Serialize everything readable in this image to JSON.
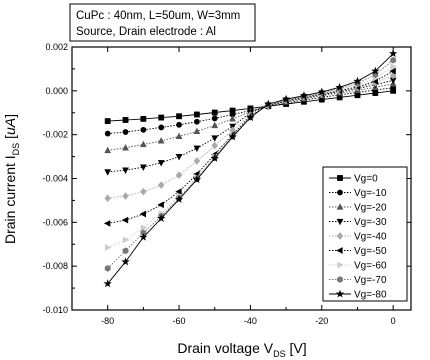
{
  "chart_data": {
    "type": "line",
    "info_box": {
      "line1": "CuPc : 40nm, L=50um, W=3mm",
      "line2": "Source, Drain electrode : Al"
    },
    "xlabel": {
      "main": "Drain voltage V",
      "sub": "DS",
      "unit": " [V]"
    },
    "ylabel": {
      "main": "Drain current I",
      "sub": "DS",
      "unit_open": " [",
      "unit": "uA",
      "unit_close": "]"
    },
    "xlim": [
      -90,
      5
    ],
    "ylim": [
      -0.01,
      0.002
    ],
    "x_ticks": [
      -80,
      -60,
      -40,
      -20,
      0
    ],
    "x_tick_labels": [
      "-80",
      "-60",
      "-40",
      "-20",
      "0"
    ],
    "y_ticks": [
      0.002,
      0.0,
      -0.002,
      -0.004,
      -0.006,
      -0.008,
      -0.01
    ],
    "y_tick_labels": [
      "0.002",
      "0.000",
      "-0.002",
      "-0.004",
      "-0.006",
      "-0.008",
      "-0.010"
    ],
    "legend_position": "lower-right",
    "x": [
      -80,
      -75,
      -70,
      -65,
      -60,
      -55,
      -50,
      -45,
      -40,
      -35,
      -30,
      -25,
      -20,
      -15,
      -10,
      -5,
      0
    ],
    "series": [
      {
        "name": "Vg=0",
        "marker": "square",
        "values": [
          -0.00138,
          -0.00133,
          -0.00128,
          -0.00122,
          -0.00116,
          -0.00108,
          -0.00099,
          -0.0009,
          -0.0008,
          -0.0007,
          -0.0006,
          -0.0005,
          -0.0004,
          -0.0003,
          -0.0002,
          -0.0001,
          0.0
        ]
      },
      {
        "name": "Vg=-10",
        "marker": "circle",
        "values": [
          -0.00195,
          -0.00188,
          -0.00178,
          -0.00167,
          -0.00155,
          -0.00141,
          -0.00126,
          -0.00108,
          -0.0009,
          -0.00072,
          -0.00056,
          -0.00042,
          -0.0003,
          -0.00018,
          -7e-05,
          4e-05,
          0.00014
        ]
      },
      {
        "name": "Vg=-20",
        "marker": "triangle-up",
        "values": [
          -0.00272,
          -0.0026,
          -0.00245,
          -0.00228,
          -0.00208,
          -0.00185,
          -0.00158,
          -0.00128,
          -0.00095,
          -0.00068,
          -0.0005,
          -0.00036,
          -0.00022,
          -0.0001,
          2e-05,
          0.00016,
          0.00032
        ]
      },
      {
        "name": "Vg=-30",
        "marker": "triangle-down",
        "values": [
          -0.0037,
          -0.00362,
          -0.00348,
          -0.00328,
          -0.003,
          -0.00262,
          -0.00215,
          -0.00162,
          -0.001,
          -0.00068,
          -0.00048,
          -0.00032,
          -0.00018,
          -4e-05,
          0.0001,
          0.00028,
          0.00048
        ]
      },
      {
        "name": "Vg=-40",
        "marker": "diamond",
        "values": [
          -0.0049,
          -0.0048,
          -0.0046,
          -0.0043,
          -0.00385,
          -0.0032,
          -0.0025,
          -0.0018,
          -0.0011,
          -0.00068,
          -0.00046,
          -0.0003,
          -0.00016,
          -2e-05,
          0.00014,
          0.00036,
          0.0007
        ]
      },
      {
        "name": "Vg=-50",
        "marker": "triangle-left",
        "values": [
          -0.00605,
          -0.0059,
          -0.00562,
          -0.0052,
          -0.0046,
          -0.0038,
          -0.0029,
          -0.002,
          -0.00115,
          -0.00066,
          -0.00044,
          -0.00028,
          -0.00014,
          1e-05,
          0.00018,
          0.00044,
          0.0009
        ]
      },
      {
        "name": "Vg=-60",
        "marker": "triangle-right",
        "values": [
          -0.00715,
          -0.0068,
          -0.00625,
          -0.0056,
          -0.0048,
          -0.00395,
          -0.003,
          -0.00205,
          -0.00118,
          -0.00064,
          -0.00042,
          -0.00026,
          -0.00011,
          6e-05,
          0.00026,
          0.00058,
          0.0011
        ]
      },
      {
        "name": "Vg=-70",
        "marker": "hexagon",
        "values": [
          -0.0081,
          -0.0073,
          -0.00648,
          -0.00572,
          -0.0049,
          -0.00402,
          -0.00305,
          -0.00208,
          -0.0012,
          -0.00062,
          -0.0004,
          -0.00024,
          -8e-05,
          0.0001,
          0.00034,
          0.00074,
          0.0014
        ]
      },
      {
        "name": "Vg=-80",
        "marker": "star",
        "values": [
          -0.0088,
          -0.0078,
          -0.00668,
          -0.00582,
          -0.00495,
          -0.00405,
          -0.00308,
          -0.0021,
          -0.00122,
          -0.0006,
          -0.00038,
          -0.00022,
          -5e-05,
          0.00016,
          0.00044,
          0.0009,
          0.0017
        ]
      }
    ]
  }
}
